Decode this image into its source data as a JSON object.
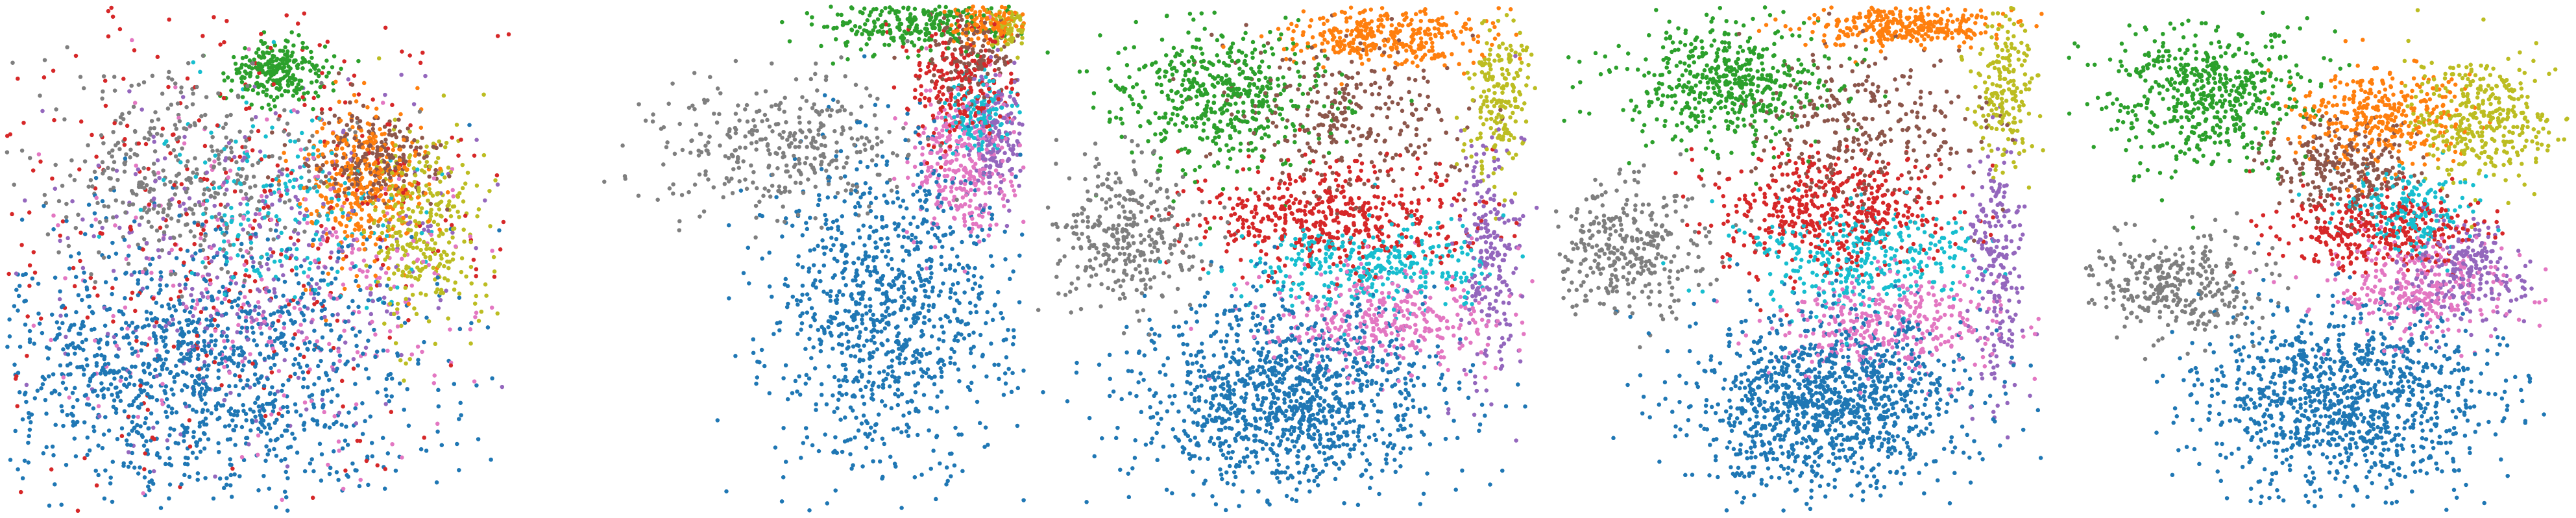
{
  "figure": {
    "title": "",
    "panel_count": 5
  },
  "palette": {
    "c0": "#1f77b4",
    "c1": "#ff7f0e",
    "c2": "#2ca02c",
    "c3": "#d62728",
    "c4": "#9467bd",
    "c5": "#8c564b",
    "c6": "#e377c2",
    "c7": "#7f7f7f",
    "c8": "#bcbd22",
    "c9": "#17becf"
  },
  "chart_data": [
    {
      "type": "scatter",
      "title": "",
      "xlabel": "",
      "ylabel": "",
      "axes_visible": false,
      "grid": false,
      "xlim": [
        0,
        100
      ],
      "ylim": [
        0,
        100
      ],
      "seed": 11,
      "marker_size": 6.5,
      "clusters": [
        {
          "color": "c0",
          "cx": 38,
          "cy": 28,
          "sx": 22,
          "sy": 13,
          "n": 1300
        },
        {
          "color": "c3",
          "cx": 45,
          "cy": 58,
          "sx": 30,
          "sy": 25,
          "n": 420
        },
        {
          "color": "c7",
          "cx": 34,
          "cy": 66,
          "sx": 14,
          "sy": 10,
          "n": 380
        },
        {
          "color": "c4",
          "cx": 50,
          "cy": 50,
          "sx": 20,
          "sy": 16,
          "n": 320
        },
        {
          "color": "c6",
          "cx": 52,
          "cy": 44,
          "sx": 22,
          "sy": 17,
          "n": 300
        },
        {
          "color": "c9",
          "cx": 55,
          "cy": 60,
          "sx": 12,
          "sy": 10,
          "n": 200
        },
        {
          "color": "c2",
          "cx": 54,
          "cy": 87,
          "sx": 5,
          "sy": 3,
          "n": 260
        },
        {
          "color": "c1",
          "cx": 71,
          "cy": 65,
          "sx": 6,
          "sy": 8,
          "n": 360
        },
        {
          "color": "c8",
          "cx": 83,
          "cy": 56,
          "sx": 6,
          "sy": 10,
          "n": 320
        },
        {
          "color": "c5",
          "cx": 73,
          "cy": 70,
          "sx": 7,
          "sy": 5,
          "n": 220
        }
      ]
    },
    {
      "type": "scatter",
      "title": "",
      "xlabel": "",
      "ylabel": "",
      "axes_visible": false,
      "grid": false,
      "xlim": [
        0,
        100
      ],
      "ylim": [
        0,
        100
      ],
      "seed": 23,
      "marker_size": 6.5,
      "clusters": [
        {
          "color": "c0",
          "cx": 73,
          "cy": 40,
          "sx": 12,
          "sy": 16,
          "n": 1000
        },
        {
          "color": "c7",
          "cx": 52,
          "cy": 72,
          "sx": 13,
          "sy": 7,
          "n": 350
        },
        {
          "color": "c2",
          "cx": 78,
          "cy": 97,
          "sx": 9,
          "sy": 3,
          "n": 300
        },
        {
          "color": "c6",
          "cx": 88,
          "cy": 69,
          "sx": 5,
          "sy": 7,
          "n": 320
        },
        {
          "color": "c3",
          "cx": 88,
          "cy": 84,
          "sx": 6,
          "sy": 6,
          "n": 220
        },
        {
          "color": "c9",
          "cx": 91,
          "cy": 78,
          "sx": 4,
          "sy": 4,
          "n": 140
        },
        {
          "color": "c4",
          "cx": 95,
          "cy": 74,
          "sx": 3,
          "sy": 6,
          "n": 160
        },
        {
          "color": "c5",
          "cx": 90,
          "cy": 90,
          "sx": 5,
          "sy": 4,
          "n": 140
        },
        {
          "color": "c1",
          "cx": 93,
          "cy": 97,
          "sx": 4,
          "sy": 2,
          "n": 120
        },
        {
          "color": "c8",
          "cx": 97,
          "cy": 96,
          "sx": 2,
          "sy": 3,
          "n": 90
        }
      ]
    },
    {
      "type": "scatter",
      "title": "",
      "xlabel": "",
      "ylabel": "",
      "axes_visible": false,
      "grid": false,
      "xlim": [
        0,
        100
      ],
      "ylim": [
        0,
        100
      ],
      "seed": 37,
      "marker_size": 6.5,
      "clusters": [
        {
          "color": "c0",
          "cx": 50,
          "cy": 22,
          "sx": 15,
          "sy": 10,
          "n": 1200
        },
        {
          "color": "c7",
          "cx": 18,
          "cy": 55,
          "sx": 8,
          "sy": 7,
          "n": 340
        },
        {
          "color": "c2",
          "cx": 36,
          "cy": 82,
          "sx": 10,
          "sy": 7,
          "n": 520
        },
        {
          "color": "c3",
          "cx": 58,
          "cy": 58,
          "sx": 14,
          "sy": 5,
          "n": 500
        },
        {
          "color": "c9",
          "cx": 66,
          "cy": 49,
          "sx": 12,
          "sy": 4,
          "n": 340
        },
        {
          "color": "c6",
          "cx": 70,
          "cy": 38,
          "sx": 13,
          "sy": 5,
          "n": 360
        },
        {
          "color": "c4",
          "cx": 90,
          "cy": 50,
          "sx": 3,
          "sy": 12,
          "n": 220
        },
        {
          "color": "c8",
          "cx": 92,
          "cy": 82,
          "sx": 3,
          "sy": 8,
          "n": 200
        },
        {
          "color": "c1",
          "cx": 70,
          "cy": 94,
          "sx": 10,
          "sy": 3,
          "n": 340
        },
        {
          "color": "c5",
          "cx": 62,
          "cy": 78,
          "sx": 12,
          "sy": 8,
          "n": 300
        }
      ]
    },
    {
      "type": "scatter",
      "title": "",
      "xlabel": "",
      "ylabel": "",
      "axes_visible": false,
      "grid": false,
      "xlim": [
        0,
        100
      ],
      "ylim": [
        0,
        100
      ],
      "seed": 51,
      "marker_size": 6.5,
      "clusters": [
        {
          "color": "c0",
          "cx": 55,
          "cy": 22,
          "sx": 14,
          "sy": 9,
          "n": 1200
        },
        {
          "color": "c7",
          "cx": 15,
          "cy": 52,
          "sx": 8,
          "sy": 7,
          "n": 340
        },
        {
          "color": "c2",
          "cx": 35,
          "cy": 85,
          "sx": 10,
          "sy": 6,
          "n": 520
        },
        {
          "color": "c3",
          "cx": 55,
          "cy": 60,
          "sx": 12,
          "sy": 6,
          "n": 480
        },
        {
          "color": "c9",
          "cx": 62,
          "cy": 50,
          "sx": 11,
          "sy": 5,
          "n": 340
        },
        {
          "color": "c6",
          "cx": 68,
          "cy": 37,
          "sx": 11,
          "sy": 5,
          "n": 360
        },
        {
          "color": "c4",
          "cx": 89,
          "cy": 48,
          "sx": 3,
          "sy": 12,
          "n": 220
        },
        {
          "color": "c8",
          "cx": 90,
          "cy": 84,
          "sx": 3,
          "sy": 8,
          "n": 200
        },
        {
          "color": "c1",
          "cx": 70,
          "cy": 96,
          "sx": 10,
          "sy": 2,
          "n": 320
        },
        {
          "color": "c5",
          "cx": 62,
          "cy": 76,
          "sx": 12,
          "sy": 8,
          "n": 300
        }
      ]
    },
    {
      "type": "scatter",
      "title": "",
      "xlabel": "",
      "ylabel": "",
      "axes_visible": false,
      "grid": false,
      "xlim": [
        0,
        100
      ],
      "ylim": [
        0,
        100
      ],
      "seed": 67,
      "marker_size": 6.5,
      "clusters": [
        {
          "color": "c0",
          "cx": 55,
          "cy": 22,
          "sx": 14,
          "sy": 9,
          "n": 1100
        },
        {
          "color": "c7",
          "cx": 22,
          "cy": 45,
          "sx": 9,
          "sy": 5,
          "n": 320
        },
        {
          "color": "c2",
          "cx": 28,
          "cy": 82,
          "sx": 10,
          "sy": 7,
          "n": 560
        },
        {
          "color": "c1",
          "cx": 62,
          "cy": 78,
          "sx": 9,
          "sy": 5,
          "n": 360
        },
        {
          "color": "c8",
          "cx": 82,
          "cy": 78,
          "sx": 7,
          "sy": 6,
          "n": 360
        },
        {
          "color": "c5",
          "cx": 55,
          "cy": 68,
          "sx": 7,
          "sy": 5,
          "n": 260
        },
        {
          "color": "c3",
          "cx": 62,
          "cy": 56,
          "sx": 10,
          "sy": 4,
          "n": 340
        },
        {
          "color": "c9",
          "cx": 68,
          "cy": 60,
          "sx": 7,
          "sy": 4,
          "n": 200
        },
        {
          "color": "c4",
          "cx": 80,
          "cy": 48,
          "sx": 6,
          "sy": 5,
          "n": 240
        },
        {
          "color": "c6",
          "cx": 70,
          "cy": 44,
          "sx": 9,
          "sy": 5,
          "n": 300
        }
      ]
    }
  ]
}
